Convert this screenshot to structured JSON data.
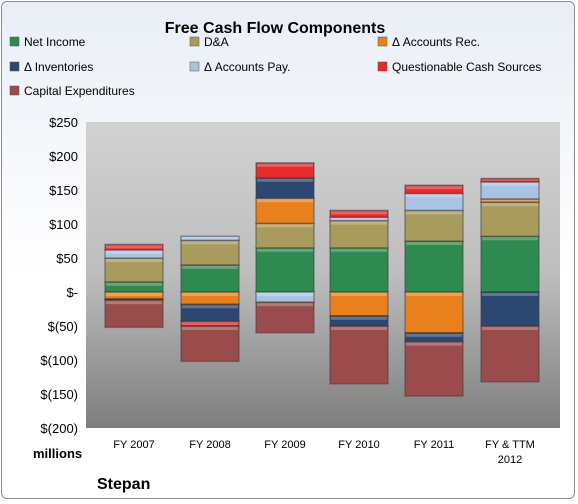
{
  "chart_data": {
    "type": "bar",
    "stacked": true,
    "title": "Free Cash Flow Components",
    "units_label": "millions",
    "company": "Stepan",
    "categories": [
      "FY 2007",
      "FY 2008",
      "FY 2009",
      "FY 2010",
      "FY 2011",
      "FY & TTM\n2012"
    ],
    "y_ticks": [
      "$250",
      "$200",
      "$150",
      "$100",
      "$50",
      "$-",
      "$(50)",
      "$(100)",
      "$(150)",
      "$(200)"
    ],
    "ylim": [
      -200,
      250
    ],
    "grid": false,
    "legend_position": "top",
    "series": [
      {
        "name": "Net Income",
        "color": "#2e8b4f",
        "values": [
          15,
          40,
          65,
          65,
          75,
          82
        ]
      },
      {
        "name": "D&A",
        "color": "#a89b5c",
        "values": [
          35,
          36,
          36,
          40,
          45,
          50
        ]
      },
      {
        "name": "Δ Accounts Rec.",
        "color": "#e8801e",
        "values": [
          -10,
          -18,
          37,
          -35,
          -60,
          5
        ]
      },
      {
        "name": "Δ Inventories",
        "color": "#2c4770",
        "values": [
          -2,
          -25,
          30,
          -15,
          -13,
          -50
        ]
      },
      {
        "name": "Δ Accounts Pay.",
        "color": "#a8c4e2",
        "values": [
          12,
          6,
          -15,
          5,
          25,
          25
        ]
      },
      {
        "name": "Questionable Cash Sources",
        "color": "#e82a2a",
        "values": [
          8,
          -7,
          22,
          10,
          12,
          5
        ]
      },
      {
        "name": "Capital Expenditures",
        "color": "#9a4b4b",
        "values": [
          -40,
          -52,
          -45,
          -85,
          -80,
          -82
        ]
      }
    ]
  }
}
